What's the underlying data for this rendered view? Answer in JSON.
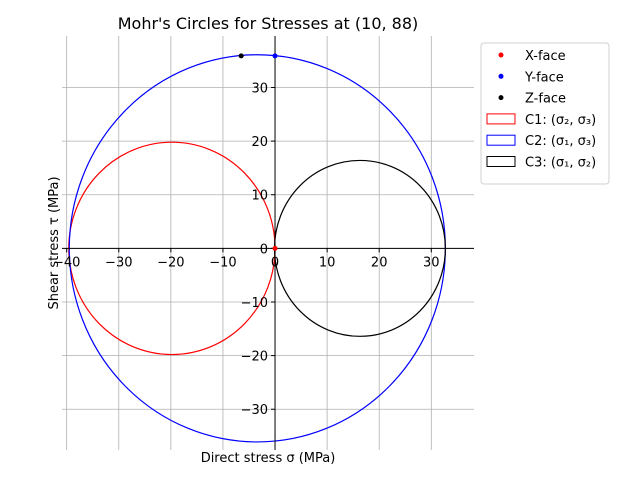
{
  "chart_data": {
    "type": "scatter",
    "title": "Mohr's Circles for Stresses at (10, 88)",
    "xlabel": "Direct stress σ (MPa)",
    "ylabel": "Shear stress τ (MPa)",
    "xlim": [
      -40.9,
      38.2
    ],
    "ylim": [
      -37.6,
      39.6
    ],
    "xticks": [
      -40,
      -30,
      -20,
      -10,
      0,
      10,
      20,
      30
    ],
    "yticks": [
      -30,
      -20,
      -10,
      0,
      10,
      20,
      30
    ],
    "grid": true,
    "legend_position": "outside-top-right",
    "series": [
      {
        "name": "X-face",
        "kind": "point",
        "color": "#ff0000",
        "x": [
          0
        ],
        "y": [
          0
        ]
      },
      {
        "name": "Y-face",
        "kind": "point",
        "color": "#0000ff",
        "x": [
          0
        ],
        "y": [
          35.9
        ]
      },
      {
        "name": "Z-face",
        "kind": "point",
        "color": "#000000",
        "x": [
          -6.5
        ],
        "y": [
          35.9
        ]
      }
    ],
    "circles": [
      {
        "name": "C1: (σ₂, σ₃)",
        "color": "#ff0000",
        "center": -19.8,
        "radius": 19.8
      },
      {
        "name": "C2: (σ₁, σ₃)",
        "color": "#0000ff",
        "center": -3.4,
        "radius": 36.1
      },
      {
        "name": "C3: (σ₁, σ₂)",
        "color": "#000000",
        "center": 16.3,
        "radius": 16.4
      }
    ]
  }
}
